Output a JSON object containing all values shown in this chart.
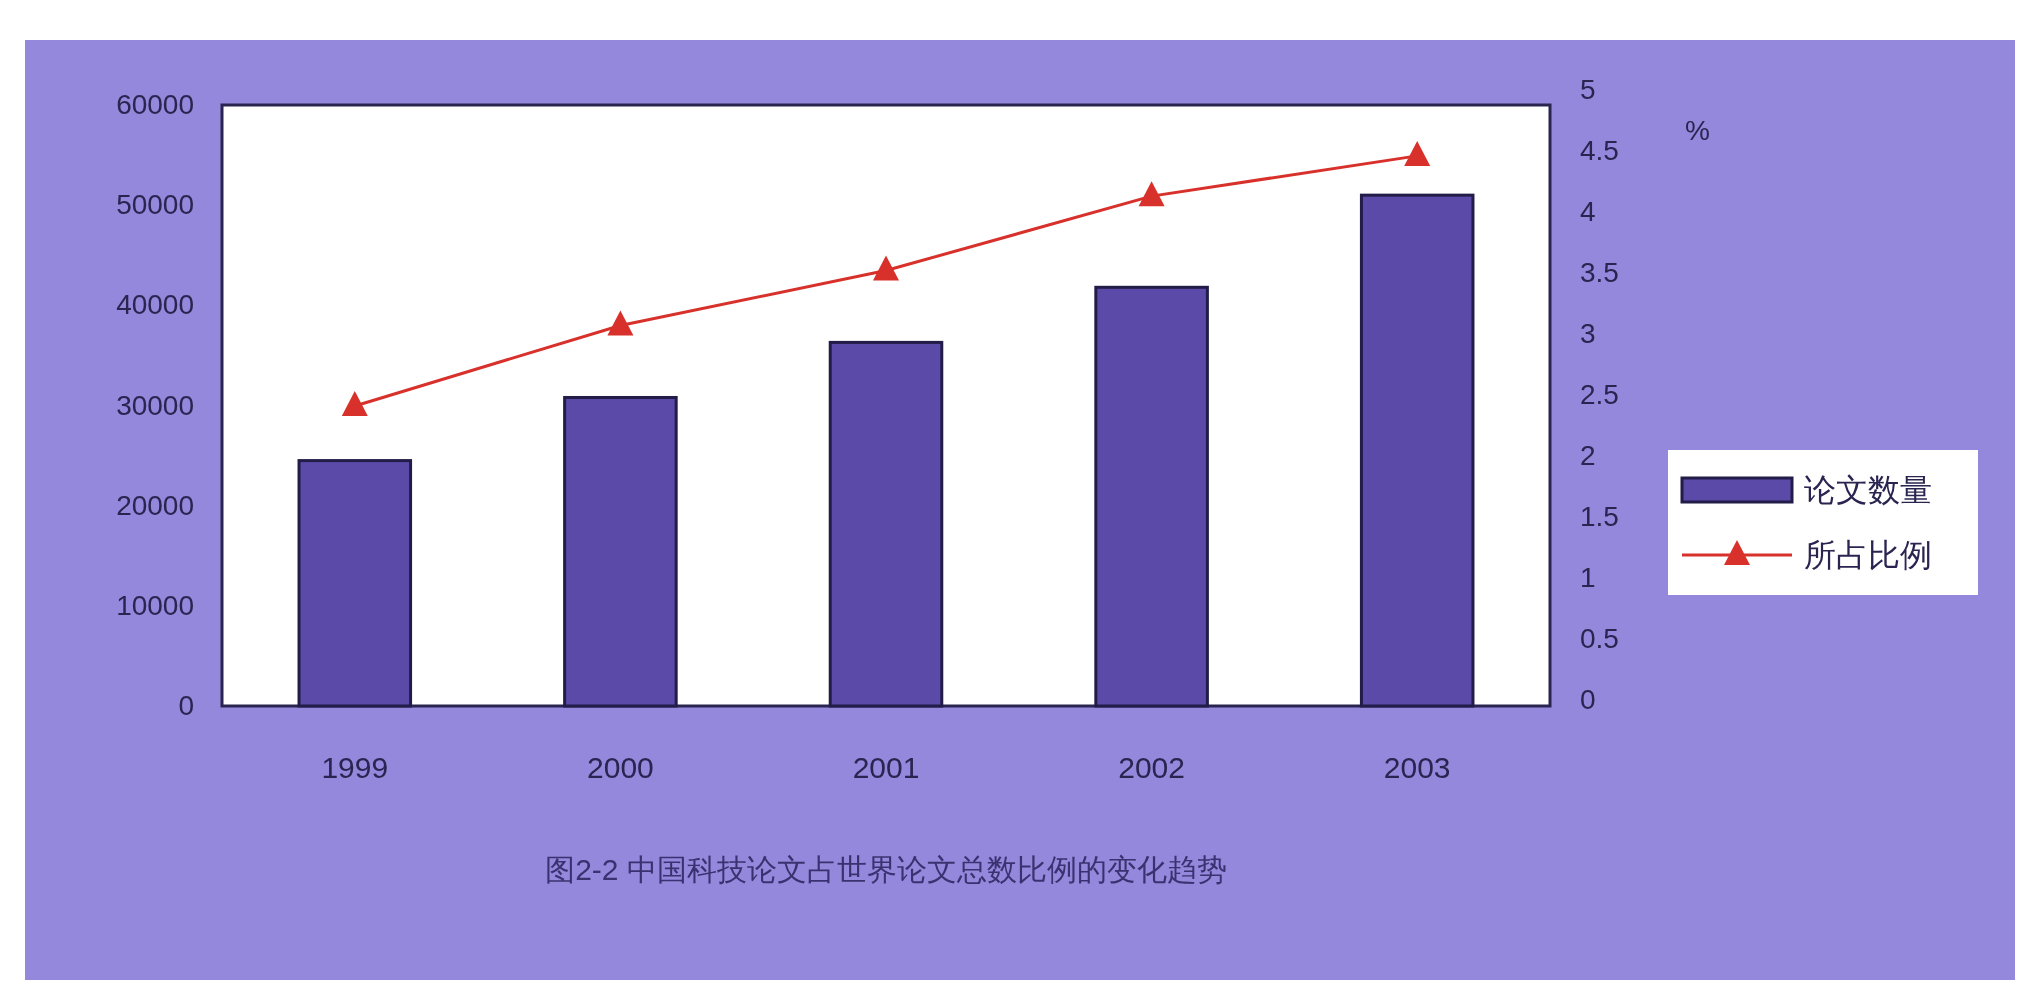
{
  "chart_data": {
    "type": "bar",
    "categories": [
      "1999",
      "2000",
      "2001",
      "2002",
      "2003"
    ],
    "series": [
      {
        "name": "论文数量",
        "color": "#5b4aa8",
        "values": [
          24500,
          30800,
          36300,
          41800,
          51000
        ]
      },
      {
        "name": "所占比例",
        "type": "line",
        "axis": "y2",
        "marker": "triangle",
        "color": "#d8302a",
        "values": [
          2.41,
          3.07,
          3.52,
          4.13,
          4.46
        ]
      }
    ],
    "ylim": [
      0,
      60000
    ],
    "yticks": [
      0,
      10000,
      20000,
      30000,
      40000,
      50000,
      60000
    ],
    "y2lim": [
      0,
      5
    ],
    "y2ticks": [
      0,
      {
        "value": 0.5,
        "label": "0.5"
      },
      1,
      {
        "value": 1.5,
        "label": "1.5"
      },
      2,
      {
        "value": 2.5,
        "label": "2.5"
      },
      3,
      {
        "value": 3.5,
        "label": "3.5"
      },
      4,
      {
        "value": 4.5,
        "label": "4.5"
      },
      5
    ],
    "y2label": "%",
    "legend": "right",
    "annotations": [
      "图2-2 中国科技论文占世界论文总数比例的变化趋势"
    ]
  }
}
